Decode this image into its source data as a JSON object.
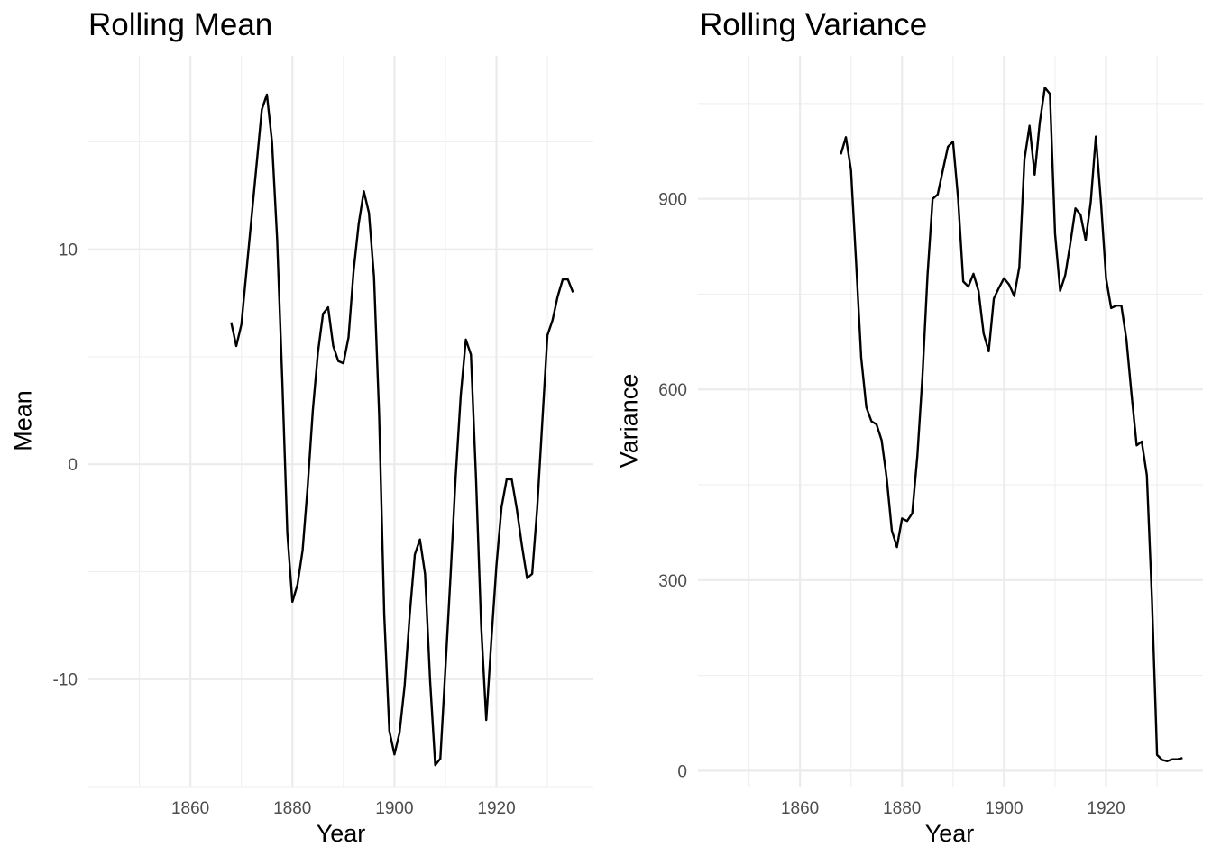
{
  "chart_data": [
    {
      "type": "line",
      "title": "Rolling Mean",
      "xlabel": "Year",
      "ylabel": "Mean",
      "xlim": [
        1840,
        1939
      ],
      "ylim": [
        -15,
        19
      ],
      "xticks": [
        1860,
        1880,
        1900,
        1920
      ],
      "yticks": [
        -10,
        0,
        10
      ],
      "grid": true,
      "line_color": "#000000",
      "x": [
        1868,
        1869,
        1870,
        1871,
        1872,
        1873,
        1874,
        1875,
        1876,
        1877,
        1878,
        1879,
        1880,
        1881,
        1882,
        1883,
        1884,
        1885,
        1886,
        1887,
        1888,
        1889,
        1890,
        1891,
        1892,
        1893,
        1894,
        1895,
        1896,
        1897,
        1898,
        1899,
        1900,
        1901,
        1902,
        1903,
        1904,
        1905,
        1906,
        1907,
        1908,
        1909,
        1910,
        1911,
        1912,
        1913,
        1914,
        1915,
        1916,
        1917,
        1918,
        1919,
        1920,
        1921,
        1922,
        1923,
        1924,
        1925,
        1926,
        1927,
        1928,
        1929,
        1930,
        1931,
        1932,
        1933,
        1934,
        1935
      ],
      "y": [
        6.6,
        5.5,
        6.5,
        9.0,
        11.5,
        14.0,
        16.5,
        17.2,
        15.0,
        10.5,
        4.0,
        -3.2,
        -6.4,
        -5.6,
        -4.0,
        -1.0,
        2.5,
        5.2,
        7.0,
        7.3,
        5.5,
        4.8,
        4.7,
        5.9,
        9.0,
        11.2,
        12.7,
        11.7,
        8.7,
        2.3,
        -7.0,
        -12.4,
        -13.5,
        -12.5,
        -10.3,
        -7.0,
        -4.2,
        -3.5,
        -5.1,
        -10.1,
        -14.0,
        -13.7,
        -9.5,
        -5.2,
        -0.6,
        3.2,
        5.8,
        5.1,
        -0.7,
        -7.5,
        -11.9,
        -8.2,
        -4.7,
        -2.0,
        -0.7,
        -0.7,
        -2.1,
        -3.8,
        -5.3,
        -5.1,
        -2.0,
        2.0,
        6.0,
        6.7,
        7.8,
        8.6,
        8.6,
        8.0
      ]
    },
    {
      "type": "line",
      "title": "Rolling Variance",
      "xlabel": "Year",
      "ylabel": "Variance",
      "xlim": [
        1840,
        1939
      ],
      "ylim": [
        -25,
        1125
      ],
      "xticks": [
        1860,
        1880,
        1900,
        1920
      ],
      "yticks": [
        0,
        300,
        600,
        900
      ],
      "grid": true,
      "line_color": "#000000",
      "x": [
        1868,
        1869,
        1870,
        1871,
        1872,
        1873,
        1874,
        1875,
        1876,
        1877,
        1878,
        1879,
        1880,
        1881,
        1882,
        1883,
        1884,
        1885,
        1886,
        1887,
        1888,
        1889,
        1890,
        1891,
        1892,
        1893,
        1894,
        1895,
        1896,
        1897,
        1898,
        1899,
        1900,
        1901,
        1902,
        1903,
        1904,
        1905,
        1906,
        1907,
        1908,
        1909,
        1910,
        1911,
        1912,
        1913,
        1914,
        1915,
        1916,
        1917,
        1918,
        1919,
        1920,
        1921,
        1922,
        1923,
        1924,
        1925,
        1926,
        1927,
        1928,
        1929,
        1930,
        1931,
        1932,
        1933,
        1934,
        1935
      ],
      "y": [
        970,
        997,
        945,
        800,
        650,
        572,
        550,
        545,
        520,
        460,
        378,
        352,
        397,
        393,
        405,
        495,
        620,
        780,
        900,
        907,
        945,
        982,
        990,
        900,
        770,
        762,
        782,
        755,
        688,
        660,
        743,
        760,
        775,
        765,
        747,
        793,
        962,
        1015,
        938,
        1020,
        1075,
        1065,
        845,
        755,
        780,
        830,
        885,
        875,
        835,
        895,
        998,
        895,
        775,
        728,
        732,
        732,
        678,
        592,
        512,
        518,
        465,
        270,
        25,
        17,
        15,
        18,
        18,
        20
      ]
    }
  ]
}
